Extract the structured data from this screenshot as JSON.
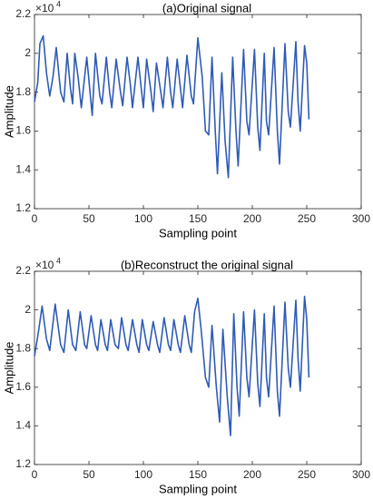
{
  "chart_data": [
    {
      "type": "line",
      "title": "(a)Original signal",
      "xlabel": "Sampling point",
      "ylabel": "Amplitude",
      "y_scale_base": "×10",
      "y_scale_exponent": "4",
      "xlim": [
        0,
        300
      ],
      "xticks": [
        0,
        50,
        100,
        150,
        200,
        250,
        300
      ],
      "ylim": [
        1.2,
        2.2
      ],
      "yticks": [
        1.2,
        1.4,
        1.6,
        1.8,
        2,
        2.2
      ],
      "x": [
        0,
        3,
        5,
        8,
        11,
        14,
        17,
        20,
        24,
        27,
        30,
        33,
        35,
        37,
        40,
        43,
        48,
        51,
        53,
        56,
        60,
        62,
        66,
        69,
        71,
        75,
        79,
        81,
        85,
        88,
        90,
        95,
        98,
        100,
        103,
        107,
        109,
        112,
        116,
        118,
        122,
        125,
        127,
        131,
        134,
        136,
        140,
        144,
        146,
        150,
        154,
        157,
        160,
        163,
        166,
        168,
        172,
        175,
        178,
        182,
        185,
        187,
        192,
        195,
        197,
        202,
        205,
        207,
        211,
        213,
        215,
        220,
        223,
        225,
        230,
        233,
        235,
        240,
        242,
        244,
        248,
        250,
        252
      ],
      "series": [
        {
          "color": "#2f5bb7",
          "values": [
            1.75,
            1.85,
            2.05,
            2.09,
            1.9,
            1.78,
            1.88,
            2.03,
            1.8,
            1.75,
            2.0,
            1.82,
            1.74,
            2.0,
            1.88,
            1.72,
            1.98,
            1.8,
            1.68,
            2.0,
            1.78,
            1.74,
            1.98,
            1.8,
            1.72,
            1.97,
            1.8,
            1.73,
            1.98,
            1.84,
            1.72,
            1.98,
            1.82,
            1.72,
            1.97,
            1.8,
            1.7,
            1.95,
            1.8,
            1.72,
            1.98,
            1.8,
            1.72,
            1.97,
            1.82,
            1.72,
            1.99,
            1.78,
            1.74,
            2.08,
            1.88,
            1.6,
            1.58,
            1.98,
            1.6,
            1.38,
            1.9,
            1.55,
            1.36,
            1.98,
            1.6,
            1.42,
            2.02,
            1.65,
            1.58,
            2.02,
            1.62,
            1.5,
            2.0,
            1.65,
            1.58,
            2.03,
            1.6,
            1.43,
            2.05,
            1.7,
            1.62,
            2.06,
            1.75,
            1.6,
            2.04,
            1.95,
            1.66
          ]
        }
      ]
    },
    {
      "type": "line",
      "title": "(b)Reconstruct the original signal",
      "xlabel": "Sampling point",
      "ylabel": "Amplitude",
      "y_scale_base": "×10",
      "y_scale_exponent": "4",
      "xlim": [
        0,
        300
      ],
      "xticks": [
        0,
        50,
        100,
        150,
        200,
        250,
        300
      ],
      "ylim": [
        1.2,
        2.2
      ],
      "yticks": [
        1.2,
        1.4,
        1.6,
        1.8,
        2,
        2.2
      ],
      "x": [
        0,
        4,
        7,
        11,
        14,
        19,
        24,
        27,
        31,
        35,
        38,
        42,
        46,
        48,
        52,
        56,
        58,
        61,
        65,
        67,
        70,
        74,
        77,
        80,
        84,
        86,
        90,
        94,
        96,
        99,
        103,
        105,
        109,
        113,
        115,
        119,
        123,
        125,
        128,
        132,
        134,
        138,
        142,
        144,
        147,
        150,
        153,
        157,
        160,
        163,
        167,
        170,
        173,
        177,
        180,
        183,
        186,
        188,
        192,
        195,
        197,
        202,
        205,
        207,
        211,
        213,
        215,
        220,
        223,
        225,
        230,
        233,
        235,
        240,
        242,
        244,
        248,
        250,
        252
      ],
      "series": [
        {
          "color": "#2f5bb7",
          "values": [
            1.76,
            1.9,
            2.02,
            1.85,
            1.79,
            2.03,
            1.82,
            1.78,
            2.0,
            1.82,
            1.79,
            1.99,
            1.82,
            1.8,
            1.97,
            1.82,
            1.79,
            1.95,
            1.82,
            1.79,
            1.95,
            1.82,
            1.8,
            1.96,
            1.82,
            1.79,
            1.95,
            1.82,
            1.78,
            1.95,
            1.82,
            1.79,
            1.94,
            1.82,
            1.78,
            1.96,
            1.82,
            1.79,
            1.95,
            1.82,
            1.78,
            1.97,
            1.82,
            1.78,
            1.99,
            2.06,
            1.9,
            1.65,
            1.6,
            1.92,
            1.6,
            1.42,
            1.9,
            1.55,
            1.35,
            1.98,
            1.6,
            1.45,
            1.99,
            1.65,
            1.55,
            2.0,
            1.62,
            1.5,
            1.98,
            1.65,
            1.55,
            2.02,
            1.58,
            1.45,
            2.04,
            1.7,
            1.6,
            2.05,
            1.75,
            1.58,
            2.07,
            1.95,
            1.65
          ]
        }
      ]
    }
  ]
}
